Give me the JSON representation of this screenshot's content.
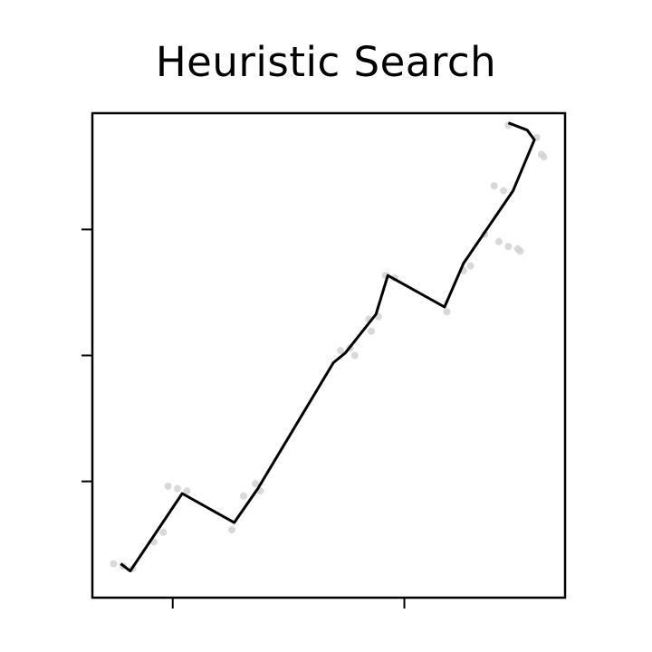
{
  "chart_data": {
    "type": "line",
    "title": "Heuristic Search",
    "xlabel": "",
    "ylabel": "",
    "xlim": [
      0,
      1
    ],
    "ylim": [
      0,
      1
    ],
    "x_ticks": [
      0.17,
      0.66
    ],
    "y_ticks": [
      0.24,
      0.5,
      0.76
    ],
    "grid": false,
    "legend": "none",
    "colors": {
      "path": "#000000",
      "explored": "#cfcfcf",
      "frame": "#000000"
    },
    "series": [
      {
        "role": "path",
        "points": [
          [
            0.06,
            0.07
          ],
          [
            0.08,
            0.055
          ],
          [
            0.19,
            0.215
          ],
          [
            0.3,
            0.155
          ],
          [
            0.35,
            0.225
          ],
          [
            0.51,
            0.485
          ],
          [
            0.535,
            0.505
          ],
          [
            0.6,
            0.585
          ],
          [
            0.625,
            0.665
          ],
          [
            0.745,
            0.6
          ],
          [
            0.785,
            0.69
          ],
          [
            0.89,
            0.84
          ],
          [
            0.935,
            0.945
          ],
          [
            0.92,
            0.965
          ],
          [
            0.88,
            0.98
          ]
        ]
      },
      {
        "role": "explored",
        "points": [
          [
            0.045,
            0.07
          ],
          [
            0.065,
            0.065
          ],
          [
            0.085,
            0.06
          ],
          [
            0.13,
            0.115
          ],
          [
            0.15,
            0.135
          ],
          [
            0.16,
            0.23
          ],
          [
            0.18,
            0.225
          ],
          [
            0.2,
            0.22
          ],
          [
            0.295,
            0.14
          ],
          [
            0.32,
            0.21
          ],
          [
            0.345,
            0.235
          ],
          [
            0.355,
            0.22
          ],
          [
            0.525,
            0.51
          ],
          [
            0.545,
            0.515
          ],
          [
            0.555,
            0.5
          ],
          [
            0.585,
            0.575
          ],
          [
            0.59,
            0.55
          ],
          [
            0.605,
            0.58
          ],
          [
            0.62,
            0.665
          ],
          [
            0.64,
            0.66
          ],
          [
            0.75,
            0.59
          ],
          [
            0.785,
            0.675
          ],
          [
            0.8,
            0.685
          ],
          [
            0.83,
            0.75
          ],
          [
            0.86,
            0.735
          ],
          [
            0.88,
            0.725
          ],
          [
            0.9,
            0.72
          ],
          [
            0.905,
            0.715
          ],
          [
            0.85,
            0.85
          ],
          [
            0.87,
            0.84
          ],
          [
            0.94,
            0.95
          ],
          [
            0.95,
            0.915
          ],
          [
            0.955,
            0.91
          ],
          [
            0.88,
            0.975
          ]
        ]
      }
    ]
  }
}
